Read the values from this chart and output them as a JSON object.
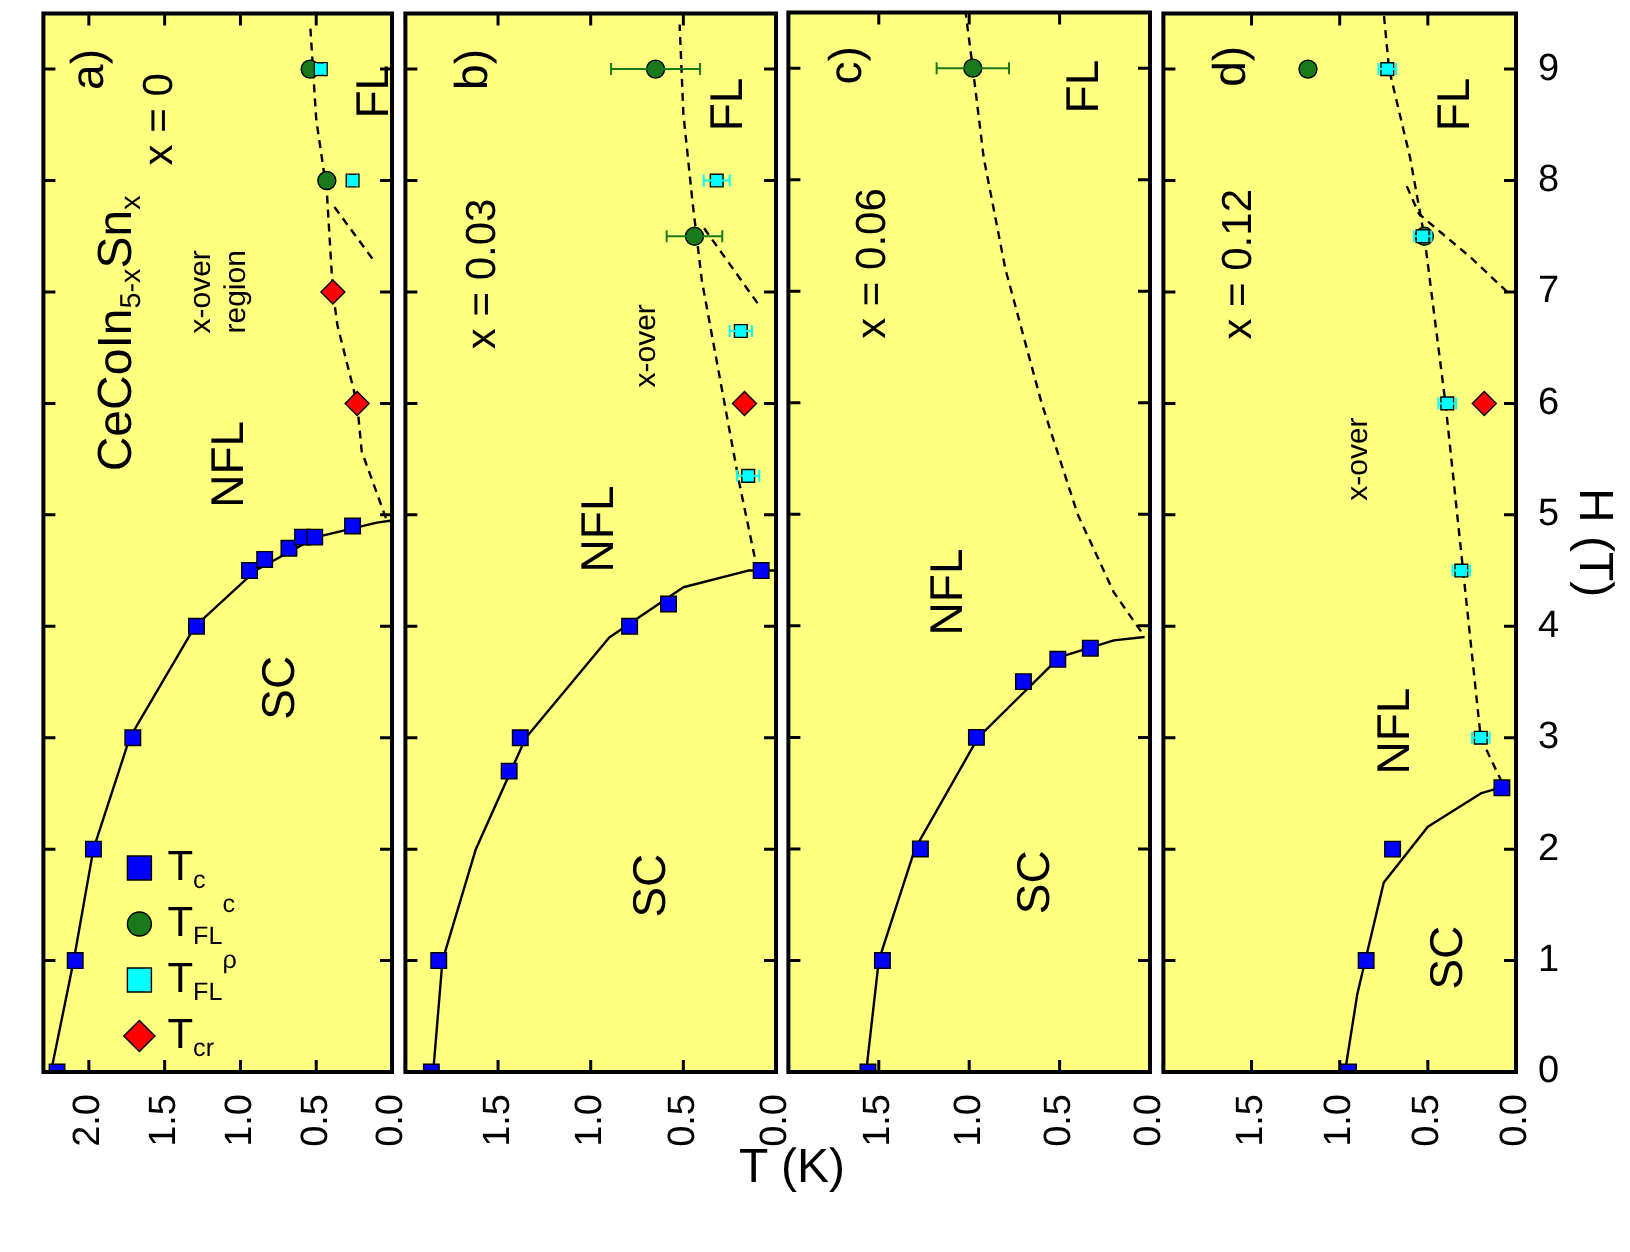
{
  "chart_data": [
    {
      "type": "scatter",
      "title": "CeCoIn$_{5-x}$Sn$_{x}$",
      "legend": "bottom left",
      "tick_labels": "x",
      "xlim": [
        2.3,
        0
      ],
      "xticks": [
        {
          "value": 2,
          "label": "2.0"
        },
        {
          "value": 1.5,
          "label": "1.5"
        },
        {
          "value": 1,
          "label": "1.0"
        },
        {
          "value": 0.5,
          "label": "0.5"
        },
        {
          "value": 0,
          "label": "0.0"
        }
      ],
      "ylim": [
        0,
        9.5
      ],
      "yticks": [
        0,
        1,
        2,
        3,
        4,
        5,
        6,
        7,
        8,
        9
      ],
      "series": [
        {
          "type": "line",
          "color": "#000000",
          "line_style": "solid",
          "x": [
            2.25,
            2.1,
            1.97,
            1.73,
            1.3,
            0.9,
            0.5,
            0.1,
            0
          ],
          "values": [
            0,
            1,
            2,
            3,
            4,
            4.5,
            4.8,
            4.93,
            4.95
          ]
        },
        {
          "type": "line",
          "color": "#000000",
          "line_style": "dashed",
          "x": [
            0.04,
            0.2,
            0.23,
            0.36,
            0.39,
            0.43,
            0.5,
            0.54
          ],
          "values": [
            4.97,
            5.57,
            6,
            6.7,
            7,
            7.9,
            8.55,
            9.4
          ]
        },
        {
          "type": "line",
          "color": "#000000",
          "line_style": "dashed",
          "x": [
            0.13,
            0.4
          ],
          "values": [
            7.3,
            7.8
          ]
        },
        {
          "name": "T$_{c}$",
          "color": "#0000ff",
          "marker": "square",
          "x": [
            2.21,
            2.09,
            1.97,
            1.71,
            1.29,
            0.94,
            0.84,
            0.68,
            0.59,
            0.51,
            0.26
          ],
          "values": [
            0,
            1,
            2,
            3,
            4,
            4.5,
            4.6,
            4.7,
            4.8,
            4.8,
            4.9
          ]
        },
        {
          "name": "T$_{FL}$$^{c}$",
          "color": "#1a7a1a",
          "marker": "circle",
          "x": [
            0.54,
            0.43
          ],
          "values": [
            9,
            8
          ]
        },
        {
          "name": "T$_{FL}$$^{ρ}$",
          "color": "#00ffff",
          "marker": "square",
          "x": [
            0.47,
            0.26
          ],
          "values": [
            9,
            8
          ],
          "xerrors": [
            0.03,
            0.03
          ]
        },
        {
          "name": "T$_{cr}$",
          "color": "#ff0000",
          "marker": "diamond",
          "x": [
            0.39,
            0.23
          ],
          "values": [
            7,
            6
          ]
        }
      ],
      "annotations": [
        "a)",
        "x = 0",
        "NFL",
        "SC",
        "FL",
        "x-over\nregion"
      ]
    },
    {
      "type": "scatter",
      "xlabel": "T (K)",
      "tick_labels": "x",
      "xlim": [
        2,
        0
      ],
      "xticks": [
        {
          "value": 2,
          "label": null
        },
        {
          "value": 1.5,
          "label": "1.5"
        },
        {
          "value": 1,
          "label": "1.0"
        },
        {
          "value": 0.5,
          "label": "0.5"
        },
        {
          "value": 0,
          "label": "0.0"
        }
      ],
      "ylim": [
        0,
        9.5
      ],
      "yticks": [
        0,
        1,
        2,
        3,
        4,
        5,
        6,
        7,
        8,
        9
      ],
      "series": [
        {
          "type": "line",
          "color": "#000000",
          "line_style": "solid",
          "x": [
            1.85,
            1.8,
            1.62,
            1.35,
            0.9,
            0.5,
            0.15,
            0
          ],
          "values": [
            0,
            1,
            2,
            3,
            3.9,
            4.35,
            4.5,
            4.5
          ]
        },
        {
          "type": "line",
          "color": "#000000",
          "line_style": "dashed",
          "x": [
            0.1,
            0.2,
            0.3,
            0.4,
            0.45,
            0.5,
            0.52
          ],
          "values": [
            4.5,
            5.3,
            6.2,
            7.1,
            7.8,
            8.6,
            9.4
          ]
        },
        {
          "type": "line",
          "color": "#000000",
          "line_style": "dashed",
          "x": [
            0.1,
            0.4
          ],
          "values": [
            6.9,
            7.6
          ]
        },
        {
          "color": "#0000ff",
          "marker": "square",
          "x": [
            1.86,
            1.82,
            1.44,
            1.38,
            0.79,
            0.58,
            0.08
          ],
          "values": [
            0,
            1,
            2.7,
            3,
            4,
            4.2,
            4.5
          ]
        },
        {
          "color": "#1a7a1a",
          "marker": "circle",
          "x": [
            0.65,
            0.44
          ],
          "values": [
            9,
            7.5
          ],
          "xerrors": [
            0.24,
            0.15
          ]
        },
        {
          "color": "#00ffff",
          "marker": "square",
          "x": [
            0.32,
            0.19,
            0.15
          ],
          "values": [
            8,
            6.65,
            5.35
          ],
          "xerrors": [
            0.07,
            0.06,
            0.06
          ]
        },
        {
          "color": "#ff0000",
          "marker": "diamond",
          "x": [
            0.17
          ],
          "values": [
            6
          ]
        }
      ],
      "annotations": [
        "b)",
        "x = 0.03",
        "NFL",
        "SC",
        "FL",
        "x-over"
      ]
    },
    {
      "type": "scatter",
      "tick_labels": "x",
      "xlim": [
        2,
        0
      ],
      "xticks": [
        {
          "value": 2,
          "label": null
        },
        {
          "value": 1.5,
          "label": "1.5"
        },
        {
          "value": 1,
          "label": "1.0"
        },
        {
          "value": 0.5,
          "label": "0.5"
        },
        {
          "value": 0,
          "label": "0.0"
        }
      ],
      "ylim": [
        0,
        9.5
      ],
      "yticks": [
        0,
        1,
        2,
        3,
        4,
        5,
        6,
        7,
        8,
        9
      ],
      "series": [
        {
          "type": "line",
          "color": "#000000",
          "line_style": "solid",
          "x": [
            1.57,
            1.5,
            1.3,
            0.95,
            0.5,
            0.2,
            0.03
          ],
          "values": [
            0,
            1,
            2,
            3,
            3.72,
            3.87,
            3.9
          ]
        },
        {
          "type": "line",
          "color": "#000000",
          "line_style": "dashed",
          "x": [
            0.05,
            0.2,
            0.4,
            0.6,
            0.8,
            0.92,
            0.98,
            1.02
          ],
          "values": [
            3.95,
            4.3,
            5.0,
            6.0,
            7.2,
            8.2,
            9,
            9.5
          ]
        },
        {
          "color": "#0000ff",
          "marker": "square",
          "x": [
            1.56,
            1.48,
            1.27,
            0.96,
            0.7,
            0.51,
            0.33
          ],
          "values": [
            0,
            1,
            2,
            3,
            3.5,
            3.7,
            3.8
          ]
        },
        {
          "color": "#1a7a1a",
          "marker": "circle",
          "x": [
            0.98
          ],
          "values": [
            9
          ],
          "xerrors": [
            0.2
          ]
        }
      ],
      "annotations": [
        "c)",
        "x = 0.06",
        "NFL",
        "SC",
        "FL"
      ]
    },
    {
      "type": "scatter",
      "ylabel": "H (T)",
      "xlim": [
        2,
        0
      ],
      "xticks": [
        {
          "value": 2,
          "label": null
        },
        {
          "value": 1.5,
          "label": "1.5"
        },
        {
          "value": 1,
          "label": "1.0"
        },
        {
          "value": 0.5,
          "label": "0.5"
        },
        {
          "value": 0,
          "label": "0.0"
        }
      ],
      "ylim": [
        0,
        9.5
      ],
      "yticks": [
        0,
        1,
        2,
        3,
        4,
        5,
        6,
        7,
        8,
        9
      ],
      "series": [
        {
          "type": "line",
          "color": "#000000",
          "line_style": "solid",
          "x": [
            0.97,
            0.9,
            0.75,
            0.5,
            0.2,
            0.05
          ],
          "values": [
            0,
            0.7,
            1.7,
            2.2,
            2.5,
            2.57
          ]
        },
        {
          "type": "line",
          "color": "#000000",
          "line_style": "dashed",
          "x": [
            0.08,
            0.2,
            0.3,
            0.4,
            0.52,
            0.6,
            0.72,
            0.75
          ],
          "values": [
            2.6,
            3.0,
            4.5,
            6,
            7.5,
            8.2,
            9,
            9.5
          ]
        },
        {
          "type": "line",
          "color": "#000000",
          "line_style": "dashed",
          "x": [
            0.05,
            0.25,
            0.55,
            0.62
          ],
          "values": [
            7.0,
            7.3,
            7.7,
            7.95
          ]
        },
        {
          "color": "#0000ff",
          "marker": "square",
          "x": [
            0.95,
            0.85,
            0.7,
            0.08
          ],
          "values": [
            0,
            1,
            2,
            2.55
          ]
        },
        {
          "color": "#1a7a1a",
          "marker": "circle",
          "x": [
            1.18,
            0.52
          ],
          "values": [
            9,
            7.5
          ]
        },
        {
          "color": "#00ffff",
          "marker": "square",
          "x": [
            0.73,
            0.53,
            0.39,
            0.31,
            0.2
          ],
          "values": [
            9,
            7.5,
            6,
            4.5,
            3
          ],
          "xerrors": [
            0.05,
            0.05,
            0.05,
            0.05,
            0.05
          ]
        },
        {
          "color": "#ff0000",
          "marker": "diamond",
          "x": [
            0.18
          ],
          "values": [
            6
          ]
        }
      ],
      "annotations": [
        "d)",
        "x = 0.12",
        "x-over",
        "NFL",
        "SC",
        "FL"
      ]
    }
  ]
}
